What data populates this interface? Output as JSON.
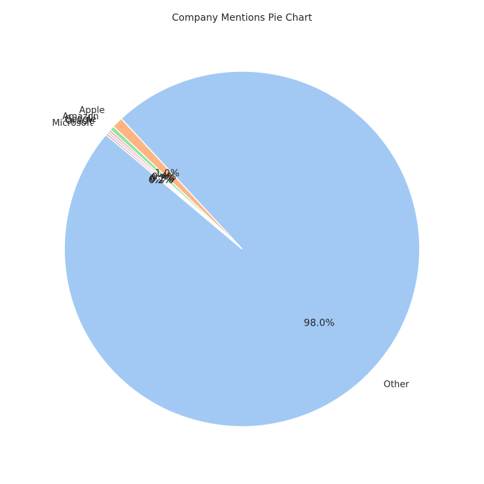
{
  "chart_data": {
    "type": "pie",
    "title": "Company Mentions Pie Chart",
    "start_angle_deg": 140,
    "direction": "counterclockwise",
    "slices": [
      {
        "name": "Other",
        "value": 98.0,
        "label": "98.0%",
        "color": "#a1c9f4"
      },
      {
        "name": "Apple",
        "value": 1.0,
        "label": "1.0%",
        "color": "#ffb482"
      },
      {
        "name": "Amazon",
        "value": 0.4,
        "label": "0.4%",
        "color": "#8de5a1"
      },
      {
        "name": "Google",
        "value": 0.2,
        "label": "0.2%",
        "color": "#ff9f9b"
      },
      {
        "name": "Oracle",
        "value": 0.2,
        "label": "0.2%",
        "color": "#d0bbff"
      },
      {
        "name": "Microsoft",
        "value": 0.2,
        "label": "0.2%",
        "color": "#debb9b"
      }
    ]
  }
}
